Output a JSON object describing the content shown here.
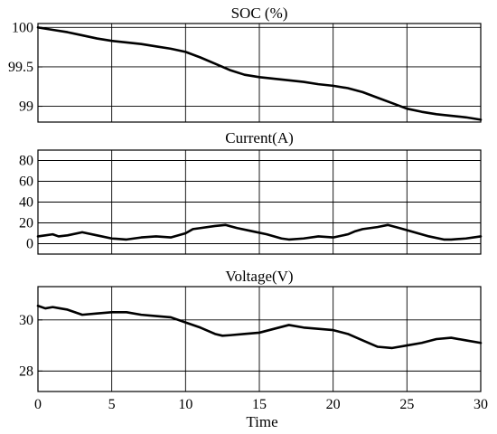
{
  "chart_data": [
    {
      "type": "line",
      "title": "SOC (%)",
      "xlabel": "",
      "ylabel": "",
      "xlim": [
        0,
        30
      ],
      "ylim": [
        98.8,
        100.05
      ],
      "grid": true,
      "x_ticks": [
        0,
        5,
        10,
        15,
        20,
        25,
        30
      ],
      "y_ticks": [
        99,
        99.5,
        100
      ],
      "y_tick_labels": [
        "99",
        "99.5",
        "100"
      ],
      "series": [
        {
          "x": [
            0,
            1,
            2,
            3,
            4,
            5,
            6,
            7,
            8,
            9,
            10,
            11,
            12,
            13,
            14,
            15,
            16,
            17,
            18,
            19,
            20,
            21,
            22,
            23,
            24,
            25,
            26,
            27,
            28,
            29,
            30
          ],
          "y": [
            100,
            99.97,
            99.94,
            99.9,
            99.86,
            99.83,
            99.81,
            99.79,
            99.76,
            99.73,
            99.69,
            99.62,
            99.54,
            99.46,
            99.4,
            99.37,
            99.35,
            99.33,
            99.31,
            99.28,
            99.26,
            99.23,
            99.18,
            99.11,
            99.04,
            98.97,
            98.93,
            98.9,
            98.88,
            98.86,
            98.83
          ]
        }
      ]
    },
    {
      "type": "line",
      "title": "Current(A)",
      "xlabel": "",
      "ylabel": "",
      "xlim": [
        0,
        30
      ],
      "ylim": [
        -10,
        90
      ],
      "grid": true,
      "x_ticks": [
        0,
        5,
        10,
        15,
        20,
        25,
        30
      ],
      "y_ticks": [
        0,
        20,
        40,
        60,
        80
      ],
      "y_tick_labels": [
        "0",
        "20",
        "40",
        "60",
        "80"
      ],
      "series": [
        {
          "x": [
            0,
            0.5,
            1,
            1.4,
            2,
            3,
            4,
            5,
            6,
            7,
            8,
            9,
            10,
            10.5,
            11,
            12,
            12.7,
            13.5,
            14.5,
            15.5,
            16.5,
            17,
            18,
            19,
            20,
            21,
            21.5,
            22,
            23,
            23.7,
            24.5,
            25.5,
            26.5,
            27.5,
            28,
            29,
            30
          ],
          "y": [
            7,
            8,
            9,
            7,
            8,
            11,
            8,
            5,
            4,
            6,
            7,
            6,
            10,
            14,
            15,
            17,
            18,
            15,
            12,
            9,
            5,
            4,
            5,
            7,
            6,
            9,
            12,
            14,
            16,
            18,
            15,
            11,
            7,
            4,
            4,
            5,
            7
          ]
        }
      ]
    },
    {
      "type": "line",
      "title": "Voltage(V)",
      "xlabel": "Time",
      "ylabel": "",
      "xlim": [
        0,
        30
      ],
      "ylim": [
        27.2,
        31.3
      ],
      "grid": true,
      "x_ticks": [
        0,
        5,
        10,
        15,
        20,
        25,
        30
      ],
      "x_tick_labels": [
        "0",
        "5",
        "10",
        "15",
        "20",
        "25",
        "30"
      ],
      "y_ticks": [
        28,
        30
      ],
      "y_tick_labels": [
        "28",
        "30"
      ],
      "series": [
        {
          "x": [
            0,
            0.5,
            1,
            1.5,
            2,
            3,
            4,
            5,
            6,
            7,
            8,
            9,
            10,
            11,
            12,
            12.5,
            13,
            14,
            15,
            16,
            17,
            18,
            19,
            20,
            21,
            22,
            23,
            24,
            25,
            26,
            27,
            28,
            29,
            30
          ],
          "y": [
            30.55,
            30.45,
            30.5,
            30.45,
            30.4,
            30.2,
            30.25,
            30.3,
            30.3,
            30.2,
            30.15,
            30.1,
            29.9,
            29.7,
            29.45,
            29.38,
            29.4,
            29.45,
            29.5,
            29.65,
            29.8,
            29.7,
            29.65,
            29.6,
            29.45,
            29.2,
            28.95,
            28.9,
            29.0,
            29.1,
            29.25,
            29.3,
            29.2,
            29.1
          ]
        }
      ]
    }
  ]
}
